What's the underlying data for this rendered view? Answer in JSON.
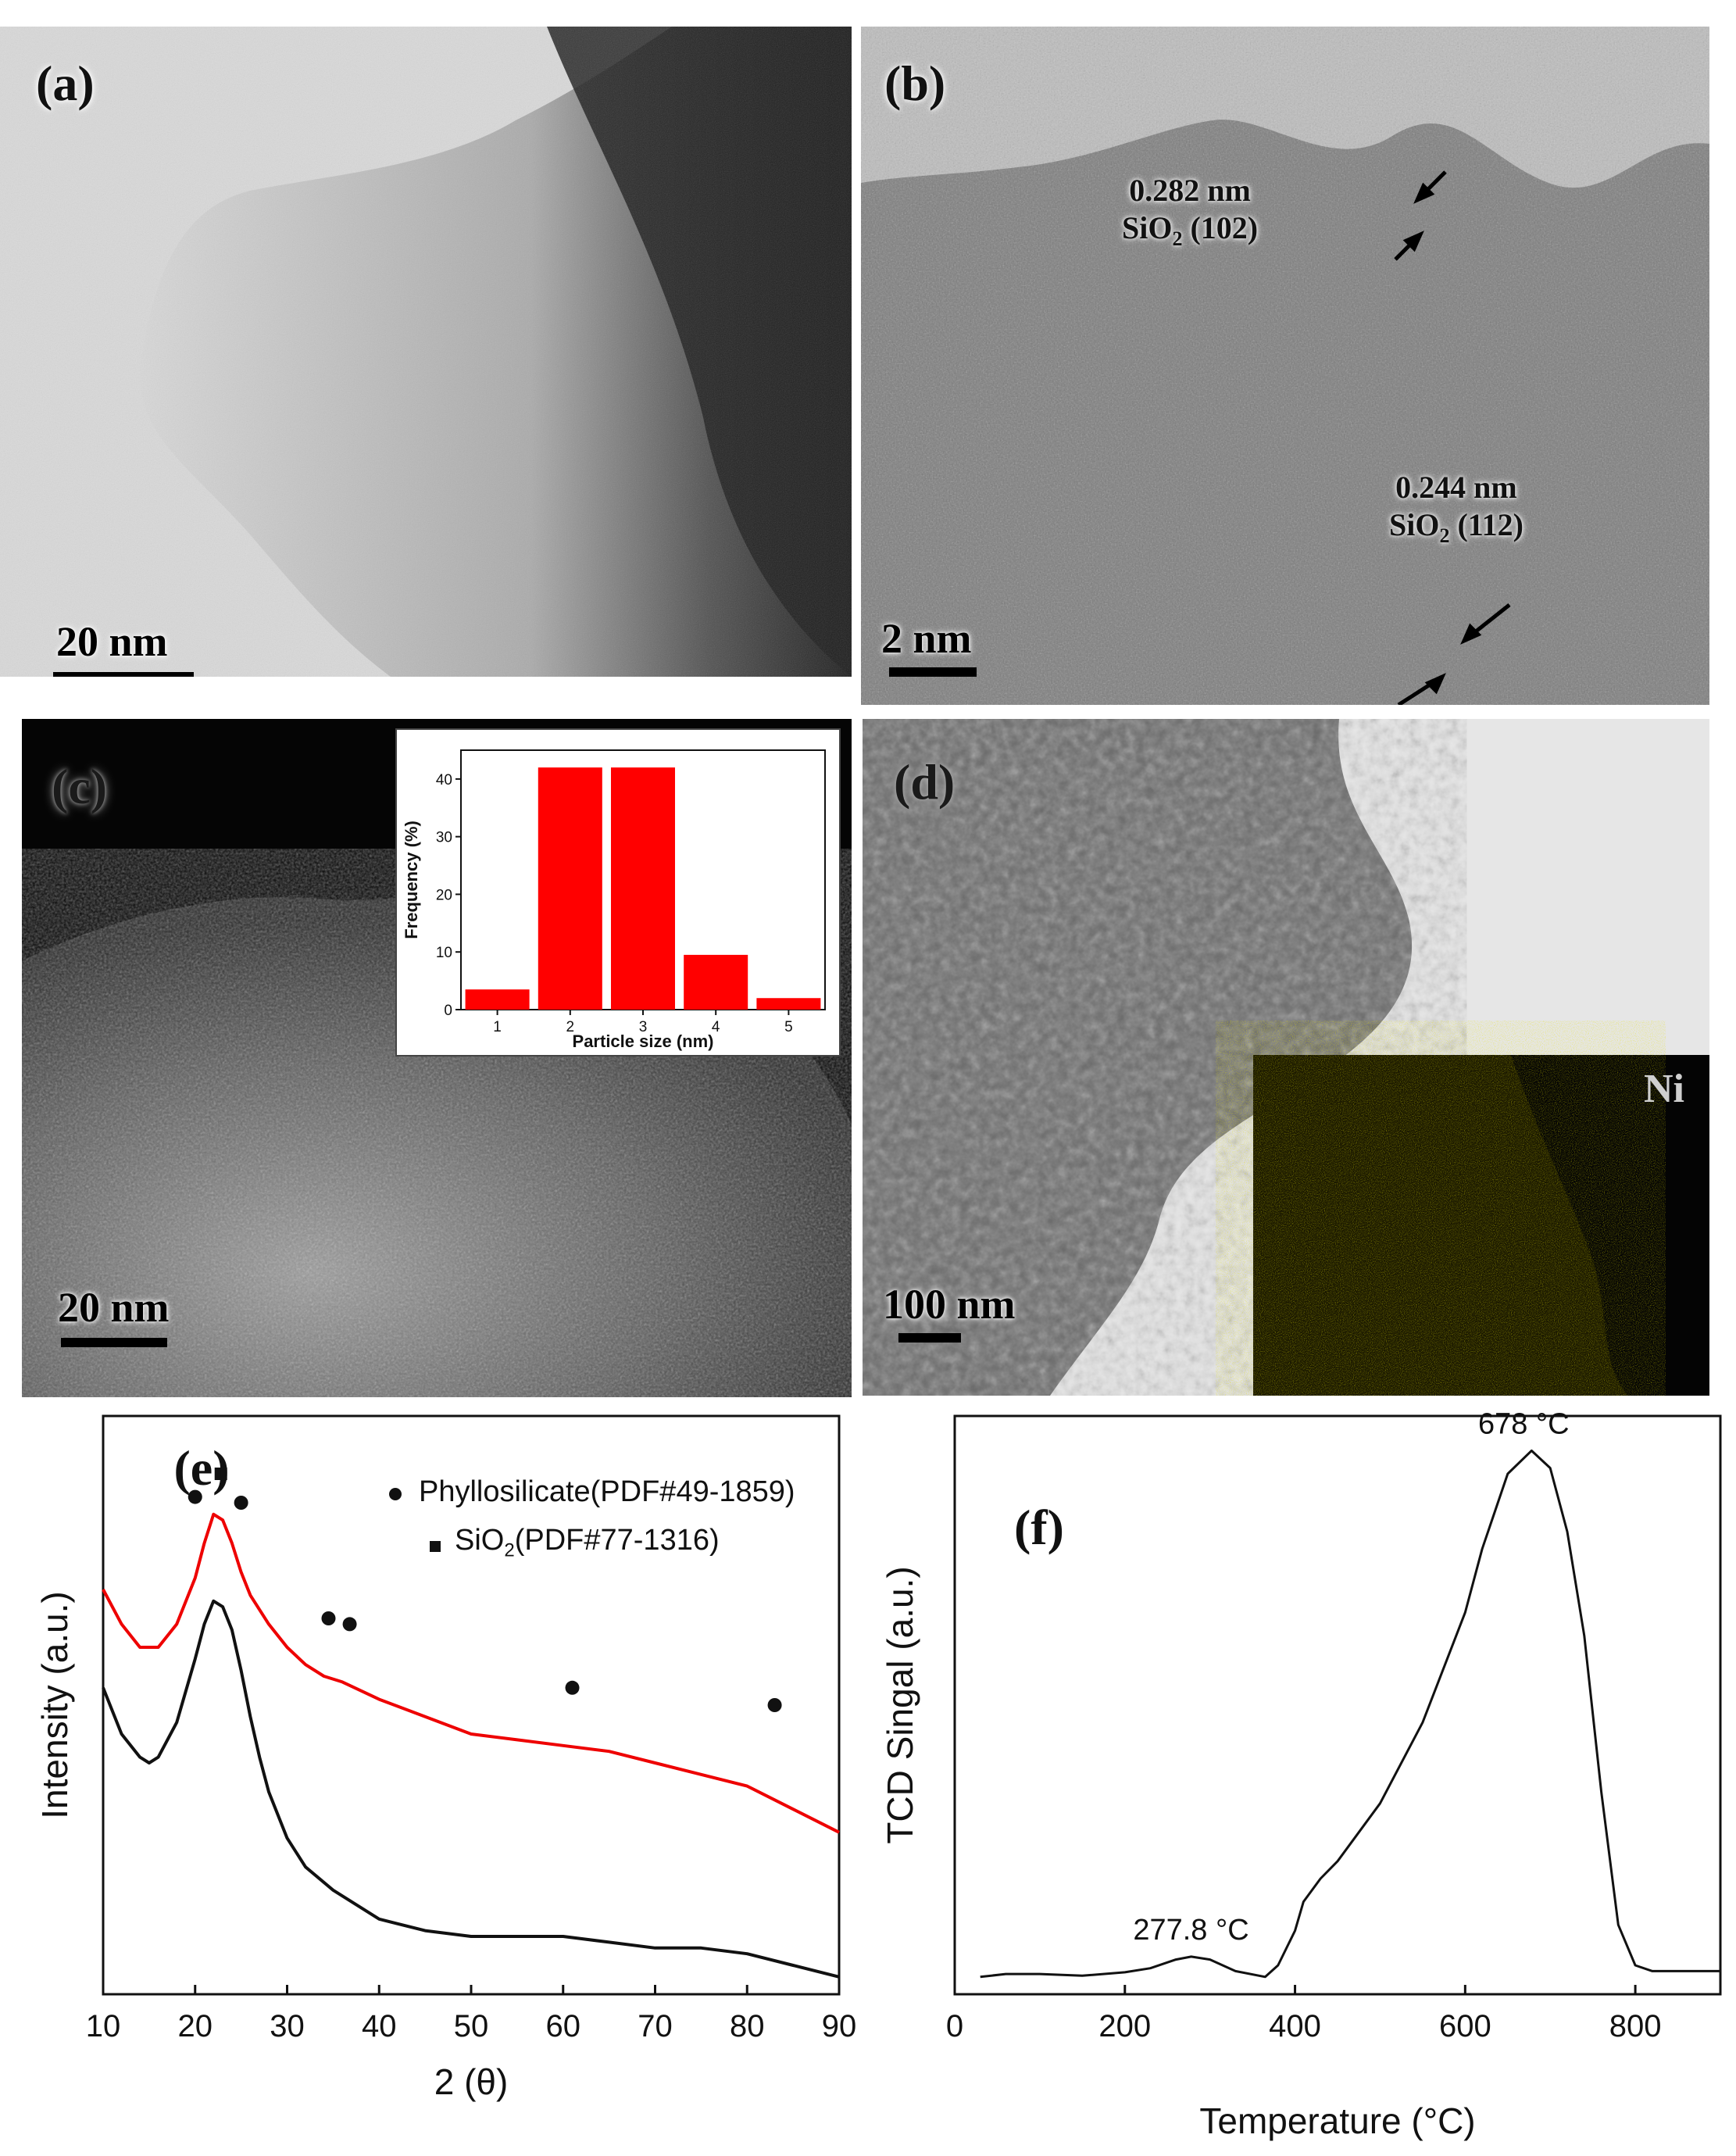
{
  "panels": {
    "a": {
      "label": "(a)",
      "scale_bar": "20 nm"
    },
    "b": {
      "label": "(b)",
      "scale_bar": "2 nm",
      "spacing1_value": "0.282 nm",
      "spacing1_phase": "SiO",
      "spacing1_sub": "2",
      "spacing1_plane": " (102)",
      "spacing2_value": "0.244 nm",
      "spacing2_phase": "SiO",
      "spacing2_sub": "2",
      "spacing2_plane": " (112)"
    },
    "c": {
      "label": "(c)",
      "scale_bar": "20 nm"
    },
    "d": {
      "label": "(d)",
      "scale_bar": "100 nm",
      "map_element": "Ni",
      "map_color": "#c8c000"
    },
    "e": {
      "label": "(e)"
    },
    "f": {
      "label": "(f)"
    }
  },
  "legend_e": {
    "phyllo_label": "Phyllosilicate(PDF#49-1859)",
    "sio2_prefix": "SiO",
    "sio2_sub": "2",
    "sio2_suffix": "(PDF#77-1316)"
  },
  "chart_data": [
    {
      "id": "c-inset",
      "type": "bar",
      "categories": [
        "1",
        "2",
        "3",
        "4",
        "5"
      ],
      "values": [
        3.5,
        42,
        42,
        9.5,
        2
      ],
      "xlabel": "Particle size (nm)",
      "ylabel": "Frequency (%)",
      "ylim": [
        0,
        45
      ],
      "yticks": [
        0,
        10,
        20,
        30,
        40
      ],
      "bar_color": "#ff0000"
    },
    {
      "id": "e",
      "type": "line",
      "xlabel": "2 (θ)",
      "ylabel": "Intensity (a.u.)",
      "xlim": [
        10,
        90
      ],
      "xticks": [
        10,
        20,
        30,
        40,
        50,
        60,
        70,
        80,
        90
      ],
      "ylim": [
        0,
        100
      ],
      "y_ticks_shown": false,
      "series": [
        {
          "color": "#ee0000",
          "x": [
            10,
            12,
            14,
            16,
            18,
            20,
            21,
            22,
            23,
            24,
            25,
            26,
            28,
            30,
            32,
            34,
            36,
            40,
            45,
            50,
            55,
            60,
            65,
            70,
            75,
            80,
            85,
            90
          ],
          "y": [
            70,
            64,
            60,
            60,
            64,
            72,
            78,
            83,
            82,
            78,
            73,
            69,
            64,
            60,
            57,
            55,
            54,
            51,
            48,
            45,
            44,
            43,
            42,
            40,
            38,
            36,
            32,
            28
          ]
        },
        {
          "color": "#111111",
          "x": [
            10,
            12,
            14,
            15,
            16,
            18,
            20,
            21,
            22,
            23,
            24,
            25,
            26,
            27,
            28,
            30,
            32,
            35,
            40,
            45,
            50,
            55,
            60,
            65,
            70,
            75,
            80,
            85,
            90
          ],
          "y": [
            53,
            45,
            41,
            40,
            41,
            47,
            58,
            64,
            68,
            67,
            63,
            56,
            48,
            41,
            35,
            27,
            22,
            18,
            13,
            11,
            10,
            10,
            10,
            9,
            8,
            8,
            7,
            5,
            3
          ]
        }
      ],
      "markers": [
        {
          "symbol": "square",
          "series": "SiO2",
          "x": 22.8,
          "y": 90
        },
        {
          "symbol": "circle",
          "series": "Phyllosilicate",
          "x": 20.0,
          "y": 86
        },
        {
          "symbol": "circle",
          "series": "Phyllosilicate",
          "x": 25.0,
          "y": 85
        },
        {
          "symbol": "circle",
          "series": "Phyllosilicate",
          "x": 34.5,
          "y": 65
        },
        {
          "symbol": "circle",
          "series": "Phyllosilicate",
          "x": 36.8,
          "y": 64
        },
        {
          "symbol": "circle",
          "series": "Phyllosilicate",
          "x": 61.0,
          "y": 53
        },
        {
          "symbol": "circle",
          "series": "Phyllosilicate",
          "x": 83.0,
          "y": 50
        }
      ]
    },
    {
      "id": "f",
      "type": "line",
      "xlabel": "Temperature (°C)",
      "ylabel": "TCD Singal (a.u.)",
      "xlim": [
        0,
        900
      ],
      "xticks": [
        0,
        200,
        400,
        600,
        800
      ],
      "ylim": [
        0,
        100
      ],
      "y_ticks_shown": false,
      "series": [
        {
          "color": "#111111",
          "x": [
            30,
            60,
            100,
            150,
            200,
            230,
            260,
            278,
            300,
            330,
            365,
            380,
            400,
            410,
            430,
            450,
            500,
            550,
            600,
            620,
            650,
            678,
            700,
            720,
            740,
            760,
            780,
            800,
            820,
            860,
            900
          ],
          "y": [
            3,
            3.5,
            3.5,
            3.2,
            3.8,
            4.5,
            6,
            6.5,
            6,
            4,
            3,
            5,
            11,
            16,
            20,
            23,
            33,
            47,
            66,
            77,
            90,
            94,
            91,
            80,
            62,
            35,
            12,
            5,
            4,
            4,
            4
          ]
        }
      ],
      "annotations": [
        {
          "text": "678 °C",
          "x": 678,
          "y": 94
        },
        {
          "text": "277.8 °C",
          "x": 277.8,
          "y": 6.5
        }
      ]
    }
  ]
}
